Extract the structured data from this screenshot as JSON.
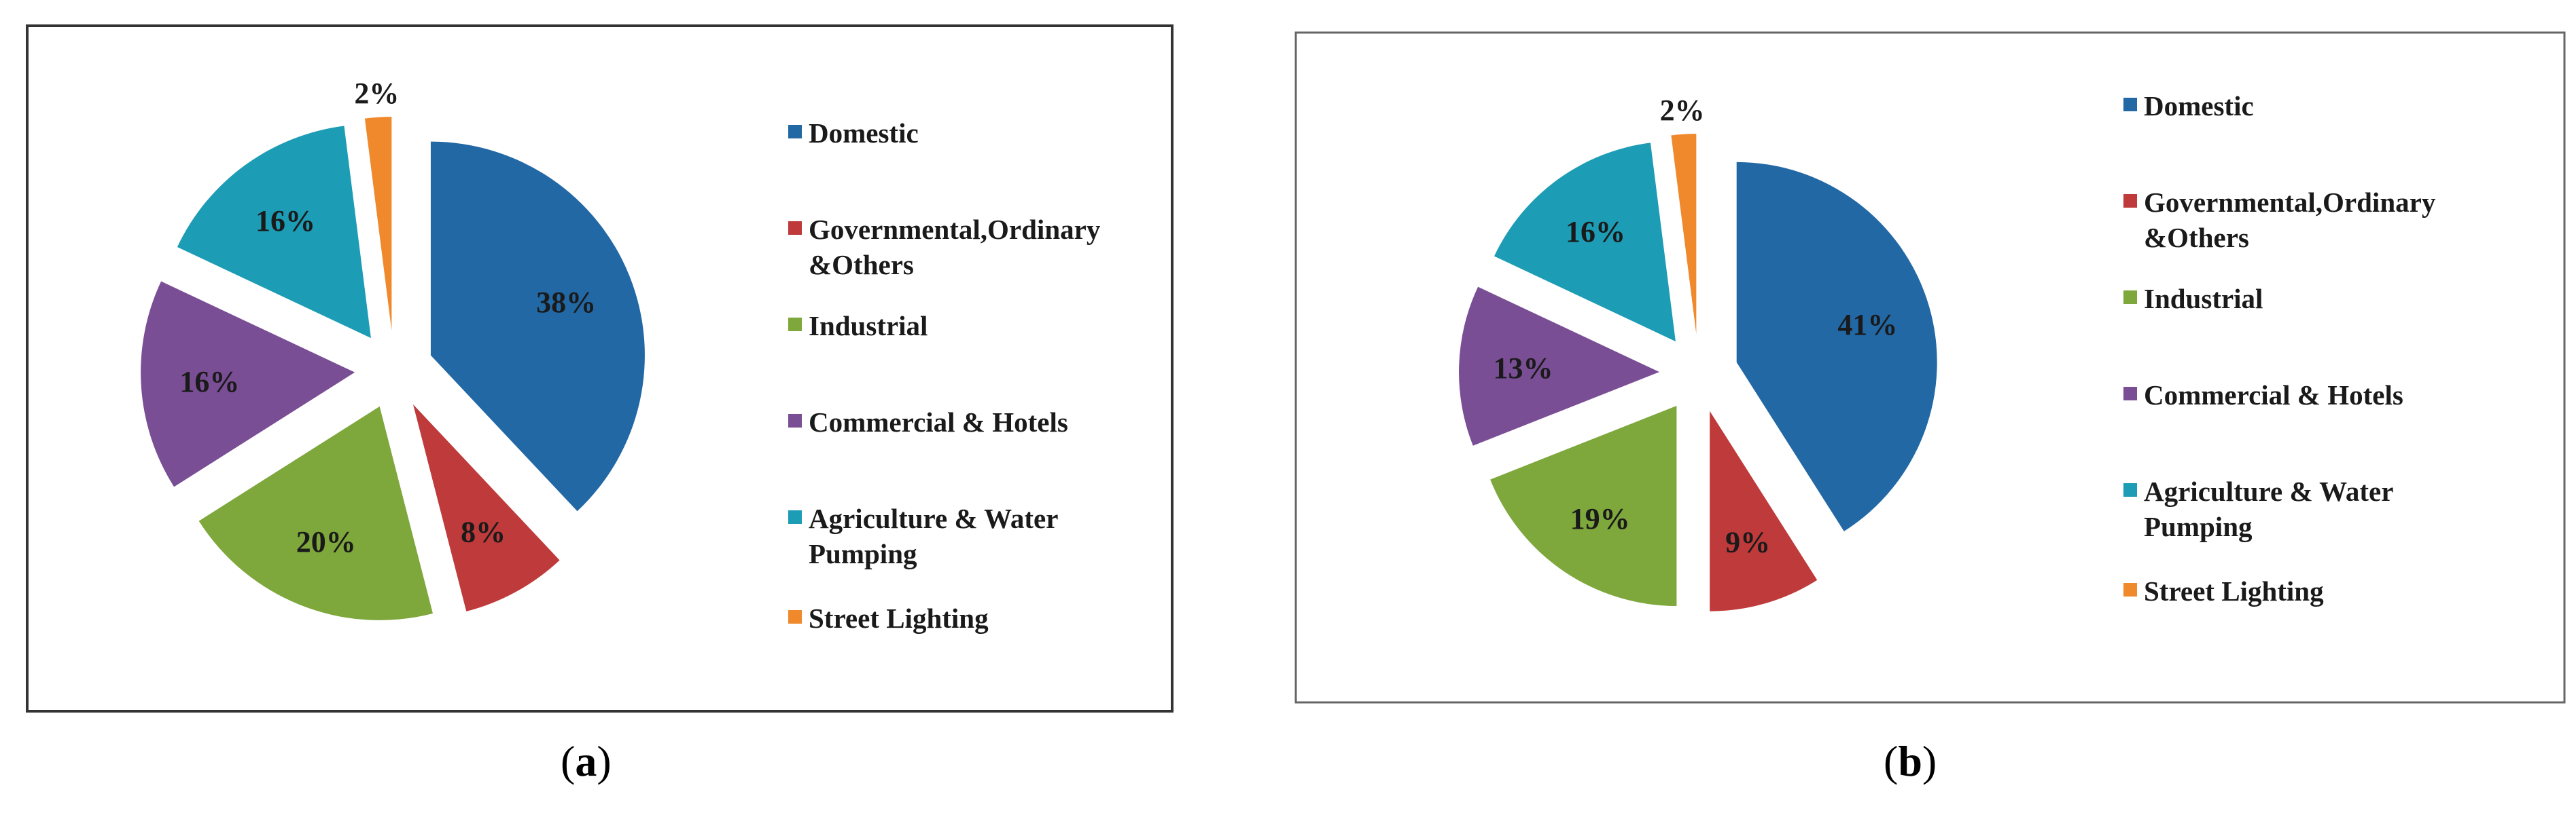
{
  "chart_data": [
    {
      "type": "pie",
      "panel_label": "a",
      "categories": [
        "Domestic",
        "Governmental,Ordinary &Others",
        "Industrial",
        "Commercial & Hotels",
        "Agriculture & Water Pumping",
        "Street Lighting"
      ],
      "values": [
        38,
        8,
        20,
        16,
        16,
        2
      ],
      "data_labels": [
        "38%",
        "8%",
        "20%",
        "16%",
        "16%",
        "2%"
      ],
      "legend_lines": [
        [
          "Domestic"
        ],
        [
          "Governmental,Ordinary",
          "&Others"
        ],
        [
          "Industrial"
        ],
        [
          "Commercial & Hotels"
        ],
        [
          "Agriculture & Water",
          "Pumping"
        ],
        [
          "Street Lighting"
        ]
      ],
      "colors": [
        "#2268A5",
        "#BF3A3A",
        "#7EA73C",
        "#7A4E95",
        "#1C9CB5",
        "#F0882C"
      ],
      "exploded": true,
      "legend_position": "right"
    },
    {
      "type": "pie",
      "panel_label": "b",
      "categories": [
        "Domestic",
        "Governmental,Ordinary &Others",
        "Industrial",
        "Commercial & Hotels",
        "Agriculture & Water Pumping",
        "Street Lighting"
      ],
      "values": [
        41,
        9,
        19,
        13,
        16,
        2
      ],
      "data_labels": [
        "41%",
        "9%",
        "19%",
        "13%",
        "16%",
        "2%"
      ],
      "legend_lines": [
        [
          "Domestic"
        ],
        [
          "Governmental,Ordinary",
          "&Others"
        ],
        [
          "Industrial"
        ],
        [
          "Commercial & Hotels"
        ],
        [
          "Agriculture & Water",
          "Pumping"
        ],
        [
          "Street Lighting"
        ]
      ],
      "colors": [
        "#2268A5",
        "#BF3A3A",
        "#7EA73C",
        "#7A4E95",
        "#1C9CB5",
        "#F0882C"
      ],
      "exploded": true,
      "legend_position": "right"
    }
  ]
}
